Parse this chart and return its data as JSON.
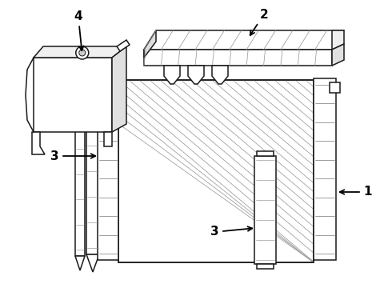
{
  "bg_color": "#ffffff",
  "line_color": "#1a1a1a",
  "line_width": 1.1,
  "fig_width": 4.9,
  "fig_height": 3.6,
  "dpi": 100,
  "hatch_color": "#555555",
  "label_fontsize": 11,
  "label_fontweight": "bold"
}
